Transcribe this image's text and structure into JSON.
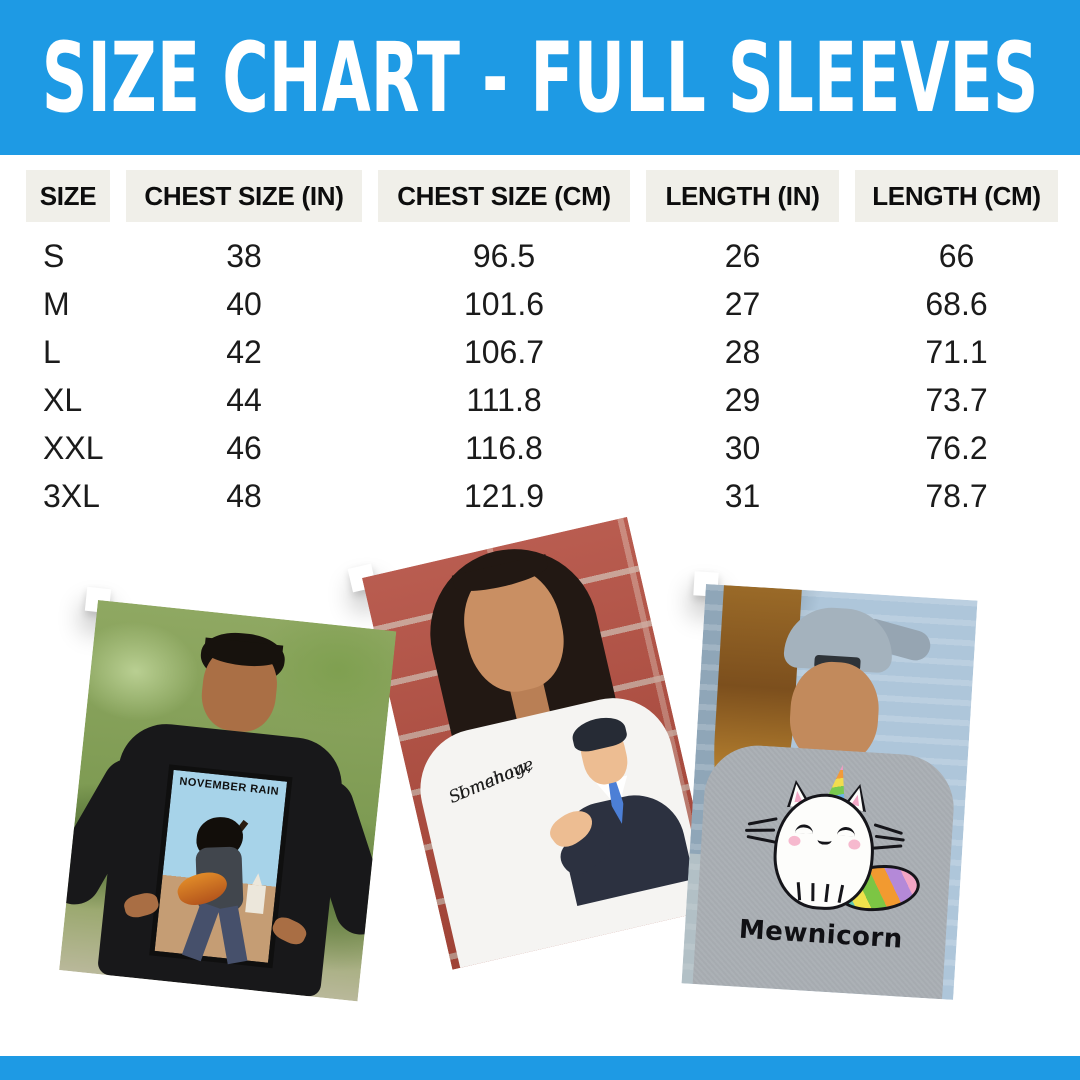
{
  "banner": {
    "title": "SIZE CHART - FULL SLEEVES"
  },
  "colors": {
    "banner_blue": "#1E9AE4",
    "header_cell_bg": "#F0EFE9"
  },
  "chart_data": {
    "type": "table",
    "title": "SIZE CHART - FULL SLEEVES",
    "columns": [
      "SIZE",
      "CHEST SIZE (IN)",
      "CHEST SIZE (CM)",
      "LENGTH (IN)",
      "LENGTH (CM)"
    ],
    "rows": [
      [
        "S",
        "38",
        "96.5",
        "26",
        "66"
      ],
      [
        "M",
        "40",
        "101.6",
        "27",
        "68.6"
      ],
      [
        "L",
        "42",
        "106.7",
        "28",
        "71.1"
      ],
      [
        "XL",
        "44",
        "111.8",
        "29",
        "73.7"
      ],
      [
        "XXL",
        "46",
        "116.8",
        "30",
        "76.2"
      ],
      [
        "3XL",
        "48",
        "121.9",
        "31",
        "78.7"
      ]
    ]
  },
  "photos": [
    {
      "label": "man in black full-sleeve tee with November Rain print",
      "poster_title": "NOVEMBER RAIN"
    },
    {
      "label": "woman in white full-sleeve tee with Somehow I manage print",
      "quote_line1": "Somehow,",
      "quote_line2": "I manage"
    },
    {
      "label": "man in grey full-sleeve tee with Mewnicorn print",
      "caption": "Mewnicorn"
    }
  ]
}
